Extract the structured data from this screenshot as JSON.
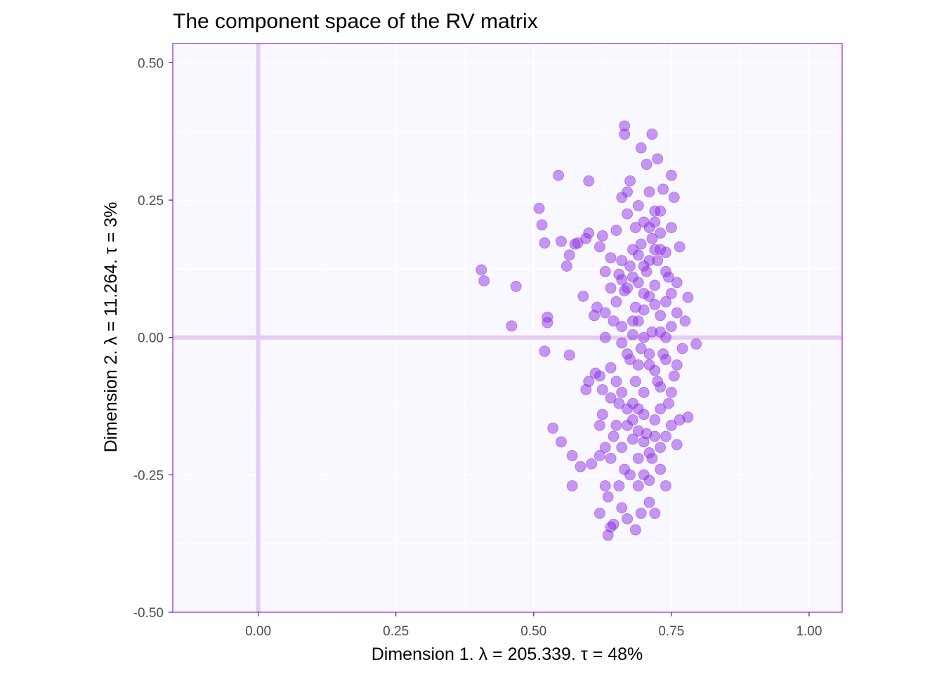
{
  "chart_data": {
    "type": "scatter",
    "title": "The component space of the RV matrix",
    "xlabel": "Dimension 1.   λ = 205.339.  τ = 48%",
    "ylabel": "Dimension 2.   λ = 11.264.  τ = 3%",
    "xlim": [
      -0.155,
      1.06
    ],
    "ylim": [
      -0.5,
      0.535
    ],
    "x_ticks": [
      0.0,
      0.25,
      0.5,
      0.75,
      1.0
    ],
    "x_tick_labels": [
      "0.00",
      "0.25",
      "0.50",
      "0.75",
      "1.00"
    ],
    "y_ticks": [
      -0.5,
      -0.25,
      0.0,
      0.25,
      0.5
    ],
    "y_tick_labels": [
      "-0.50",
      "-0.25",
      "0.00",
      "0.25",
      "0.50"
    ],
    "grid": true,
    "reference_lines": {
      "x": 0,
      "y": 0
    },
    "colors": {
      "point": "#8a2be2",
      "panel_background": "#f9f7ff",
      "panel_border": "#8a2be2",
      "grid": "#ffffff",
      "reference_line": "#e6cbf2"
    },
    "points": [
      [
        0.405,
        0.123
      ],
      [
        0.41,
        0.103
      ],
      [
        0.46,
        0.021
      ],
      [
        0.468,
        0.093
      ],
      [
        0.51,
        0.235
      ],
      [
        0.515,
        0.205
      ],
      [
        0.52,
        -0.025
      ],
      [
        0.52,
        0.172
      ],
      [
        0.525,
        0.037
      ],
      [
        0.525,
        0.027
      ],
      [
        0.535,
        -0.165
      ],
      [
        0.545,
        0.295
      ],
      [
        0.55,
        -0.19
      ],
      [
        0.55,
        0.175
      ],
      [
        0.56,
        0.13
      ],
      [
        0.565,
        -0.032
      ],
      [
        0.565,
        0.15
      ],
      [
        0.57,
        -0.27
      ],
      [
        0.57,
        -0.215
      ],
      [
        0.575,
        0.17
      ],
      [
        0.58,
        0.172
      ],
      [
        0.585,
        -0.235
      ],
      [
        0.59,
        0.075
      ],
      [
        0.595,
        -0.095
      ],
      [
        0.595,
        0.18
      ],
      [
        0.6,
        0.19
      ],
      [
        0.6,
        -0.08
      ],
      [
        0.6,
        0.285
      ],
      [
        0.605,
        -0.23
      ],
      [
        0.61,
        0.04
      ],
      [
        0.612,
        -0.065
      ],
      [
        0.615,
        0.055
      ],
      [
        0.62,
        -0.32
      ],
      [
        0.62,
        -0.215
      ],
      [
        0.62,
        -0.07
      ],
      [
        0.62,
        0.165
      ],
      [
        0.625,
        -0.14
      ],
      [
        0.625,
        -0.095
      ],
      [
        0.625,
        0.185
      ],
      [
        0.63,
        -0.27
      ],
      [
        0.63,
        -0.2
      ],
      [
        0.63,
        0.045
      ],
      [
        0.635,
        -0.36
      ],
      [
        0.635,
        -0.29
      ],
      [
        0.64,
        -0.345
      ],
      [
        0.64,
        -0.22
      ],
      [
        0.64,
        -0.055
      ],
      [
        0.64,
        0.145
      ],
      [
        0.645,
        -0.34
      ],
      [
        0.645,
        -0.18
      ],
      [
        0.645,
        0.03
      ],
      [
        0.65,
        -0.16
      ],
      [
        0.65,
        0.065
      ],
      [
        0.65,
        0.195
      ],
      [
        0.655,
        -0.27
      ],
      [
        0.655,
        -0.12
      ],
      [
        0.655,
        0.115
      ],
      [
        0.66,
        -0.31
      ],
      [
        0.66,
        -0.2
      ],
      [
        0.66,
        -0.1
      ],
      [
        0.66,
        0.02
      ],
      [
        0.66,
        0.105
      ],
      [
        0.66,
        0.255
      ],
      [
        0.665,
        0.385
      ],
      [
        0.665,
        0.37
      ],
      [
        0.665,
        -0.24
      ],
      [
        0.665,
        0.085
      ],
      [
        0.67,
        -0.33
      ],
      [
        0.67,
        -0.16
      ],
      [
        0.67,
        0.225
      ],
      [
        0.67,
        0.265
      ],
      [
        0.675,
        -0.25
      ],
      [
        0.675,
        -0.04
      ],
      [
        0.675,
        0.13
      ],
      [
        0.675,
        0.285
      ],
      [
        0.68,
        -0.185
      ],
      [
        0.68,
        0.005
      ],
      [
        0.68,
        0.16
      ],
      [
        0.685,
        -0.35
      ],
      [
        0.685,
        -0.08
      ],
      [
        0.685,
        0.055
      ],
      [
        0.685,
        0.2
      ],
      [
        0.69,
        -0.27
      ],
      [
        0.69,
        -0.22
      ],
      [
        0.69,
        -0.13
      ],
      [
        0.69,
        0.1
      ],
      [
        0.69,
        0.24
      ],
      [
        0.695,
        -0.32
      ],
      [
        0.695,
        0.345
      ],
      [
        0.695,
        -0.02
      ],
      [
        0.695,
        0.17
      ],
      [
        0.7,
        -0.25
      ],
      [
        0.7,
        -0.1
      ],
      [
        0.7,
        0.05
      ],
      [
        0.7,
        0.21
      ],
      [
        0.705,
        0.315
      ],
      [
        0.705,
        -0.175
      ],
      [
        0.705,
        0.12
      ],
      [
        0.71,
        -0.3
      ],
      [
        0.71,
        -0.05
      ],
      [
        0.71,
        0.075
      ],
      [
        0.71,
        0.265
      ],
      [
        0.715,
        0.37
      ],
      [
        0.715,
        -0.22
      ],
      [
        0.715,
        0.01
      ],
      [
        0.715,
        0.18
      ],
      [
        0.72,
        -0.32
      ],
      [
        0.72,
        -0.15
      ],
      [
        0.72,
        0.095
      ],
      [
        0.72,
        0.23
      ],
      [
        0.725,
        0.325
      ],
      [
        0.725,
        -0.08
      ],
      [
        0.725,
        0.14
      ],
      [
        0.73,
        -0.2
      ],
      [
        0.73,
        0.04
      ],
      [
        0.73,
        0.19
      ],
      [
        0.735,
        0.27
      ],
      [
        0.735,
        -0.03
      ],
      [
        0.74,
        -0.18
      ],
      [
        0.74,
        0.065
      ],
      [
        0.74,
        0.155
      ],
      [
        0.745,
        -0.12
      ],
      [
        0.745,
        0.11
      ],
      [
        0.75,
        0.295
      ],
      [
        0.75,
        -0.16
      ],
      [
        0.75,
        0.02
      ],
      [
        0.75,
        0.2
      ],
      [
        0.755,
        0.255
      ],
      [
        0.755,
        -0.07
      ],
      [
        0.76,
        -0.195
      ],
      [
        0.76,
        0.045
      ],
      [
        0.765,
        -0.15
      ],
      [
        0.765,
        0.165
      ],
      [
        0.77,
        -0.02
      ],
      [
        0.775,
        0.03
      ],
      [
        0.78,
        -0.145
      ],
      [
        0.78,
        0.073
      ],
      [
        0.795,
        -0.012
      ],
      [
        0.69,
        0.15
      ],
      [
        0.7,
        0.13
      ],
      [
        0.71,
        0.14
      ],
      [
        0.72,
        0.16
      ],
      [
        0.7,
        0.0
      ],
      [
        0.71,
        -0.03
      ],
      [
        0.72,
        -0.06
      ],
      [
        0.73,
        -0.09
      ],
      [
        0.74,
        -0.04
      ],
      [
        0.73,
        0.01
      ],
      [
        0.68,
        -0.15
      ],
      [
        0.69,
        -0.17
      ],
      [
        0.7,
        -0.19
      ],
      [
        0.71,
        -0.21
      ],
      [
        0.72,
        -0.18
      ],
      [
        0.73,
        -0.13
      ],
      [
        0.74,
        0.12
      ],
      [
        0.68,
        0.11
      ],
      [
        0.67,
        0.09
      ],
      [
        0.66,
        0.14
      ],
      [
        0.65,
        -0.08
      ],
      [
        0.64,
        -0.11
      ],
      [
        0.63,
        0.12
      ],
      [
        0.62,
        -0.16
      ],
      [
        0.73,
        -0.24
      ],
      [
        0.74,
        -0.27
      ],
      [
        0.71,
        -0.26
      ],
      [
        0.72,
        0.06
      ],
      [
        0.7,
        0.08
      ],
      [
        0.69,
        -0.05
      ],
      [
        0.71,
        0.2
      ],
      [
        0.72,
        0.21
      ],
      [
        0.73,
        0.23
      ],
      [
        0.69,
        0.03
      ],
      [
        0.68,
        0.03
      ],
      [
        0.75,
        -0.1
      ],
      [
        0.76,
        -0.05
      ],
      [
        0.66,
        -0.01
      ],
      [
        0.67,
        -0.03
      ],
      [
        0.63,
        0.0
      ],
      [
        0.64,
        0.09
      ],
      [
        0.74,
        0.0
      ],
      [
        0.75,
        0.08
      ],
      [
        0.76,
        0.1
      ],
      [
        0.68,
        -0.12
      ],
      [
        0.67,
        -0.13
      ],
      [
        0.7,
        -0.14
      ],
      [
        0.73,
        0.16
      ]
    ]
  }
}
